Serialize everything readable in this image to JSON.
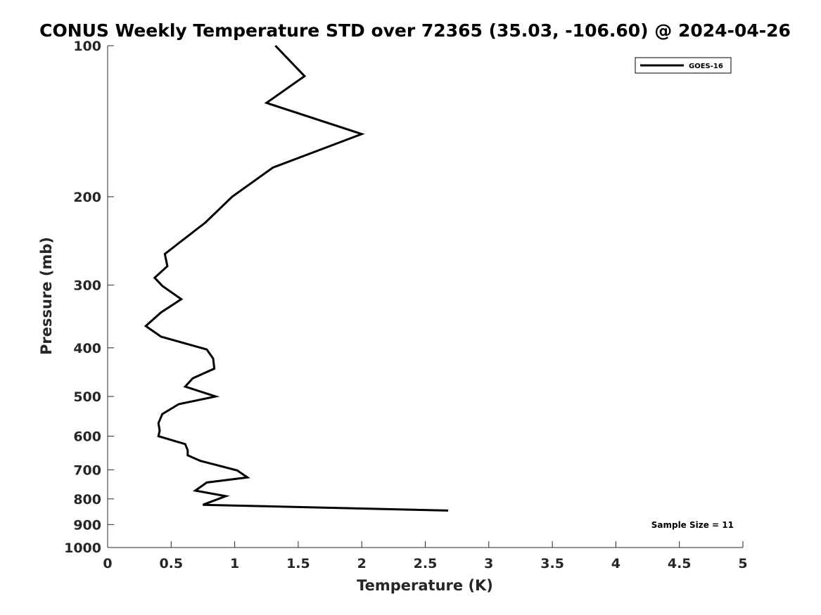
{
  "chart_data": {
    "type": "line",
    "title": "CONUS Weekly Temperature STD over 72365 (35.03, -106.60) @ 2024-04-26",
    "xlabel": "Temperature (K)",
    "ylabel": "Pressure (mb)",
    "xlim": [
      0,
      5
    ],
    "ylim": [
      1000,
      100
    ],
    "yscale": "log",
    "y_reversed": true,
    "grid": false,
    "legend_position": "top-right",
    "x_ticks": [
      0,
      0.5,
      1,
      1.5,
      2,
      2.5,
      3,
      3.5,
      4,
      4.5,
      5
    ],
    "x_tick_labels": [
      "0",
      "0.5",
      "1",
      "1.5",
      "2",
      "2.5",
      "3",
      "3.5",
      "4",
      "4.5",
      "5"
    ],
    "y_ticks": [
      100,
      200,
      300,
      400,
      500,
      600,
      700,
      800,
      900,
      1000
    ],
    "y_tick_labels": [
      "100",
      "200",
      "300",
      "400",
      "500",
      "600",
      "700",
      "800",
      "900",
      "1000"
    ],
    "series": [
      {
        "name": "GOES-16",
        "color": "#000000",
        "points": [
          [
            1.32,
            100
          ],
          [
            1.55,
            115
          ],
          [
            1.25,
            130
          ],
          [
            2.0,
            150
          ],
          [
            1.3,
            175
          ],
          [
            0.98,
            200
          ],
          [
            0.77,
            225
          ],
          [
            0.45,
            260
          ],
          [
            0.47,
            275
          ],
          [
            0.37,
            290
          ],
          [
            0.43,
            301
          ],
          [
            0.58,
            320
          ],
          [
            0.42,
            340
          ],
          [
            0.3,
            362
          ],
          [
            0.42,
            380
          ],
          [
            0.78,
            403
          ],
          [
            0.83,
            420
          ],
          [
            0.84,
            440
          ],
          [
            0.67,
            460
          ],
          [
            0.61,
            478
          ],
          [
            0.85,
            500
          ],
          [
            0.56,
            518
          ],
          [
            0.43,
            542
          ],
          [
            0.4,
            565
          ],
          [
            0.41,
            585
          ],
          [
            0.4,
            600
          ],
          [
            0.61,
            622
          ],
          [
            0.63,
            640
          ],
          [
            0.63,
            655
          ],
          [
            0.73,
            672
          ],
          [
            1.02,
            702
          ],
          [
            1.1,
            725
          ],
          [
            0.78,
            742
          ],
          [
            0.69,
            770
          ],
          [
            0.93,
            790
          ],
          [
            0.75,
            822
          ],
          [
            2.68,
            844
          ]
        ]
      }
    ],
    "annotations": [
      "Sample Size = 11"
    ]
  }
}
